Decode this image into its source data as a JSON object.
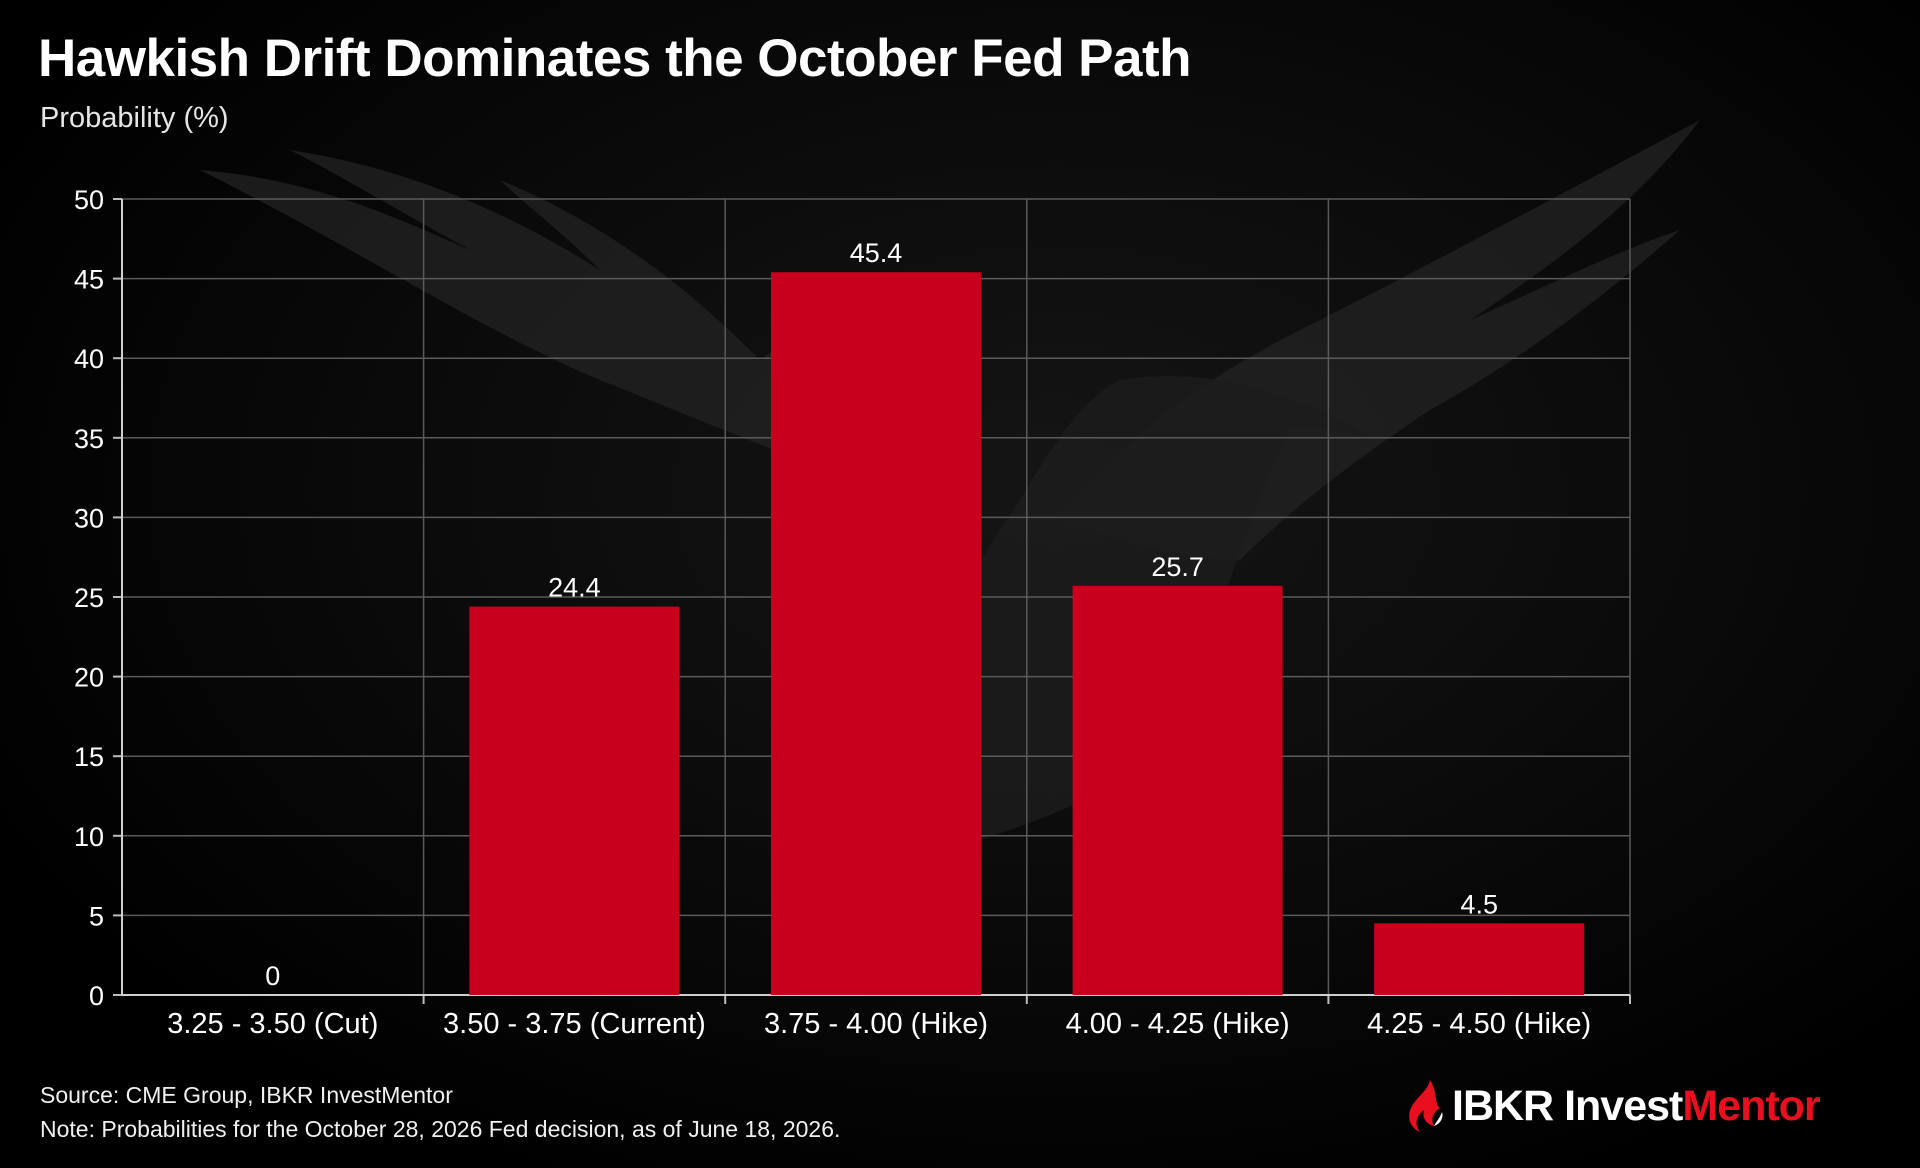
{
  "header": {
    "title": "Hawkish Drift Dominates the October Fed Path",
    "subtitle": "Probability (%)"
  },
  "chart_data": {
    "type": "bar",
    "categories": [
      "3.25 - 3.50 (Cut)",
      "3.50 - 3.75 (Current)",
      "3.75 - 4.00 (Hike)",
      "4.00 - 4.25 (Hike)",
      "4.25 - 4.50 (Hike)"
    ],
    "values": [
      0,
      24.4,
      45.4,
      25.7,
      4.5
    ],
    "value_labels": [
      "0",
      "24.4",
      "45.4",
      "25.7",
      "4.5"
    ],
    "title": "Hawkish Drift Dominates the October Fed Path",
    "ylabel": "Probability (%)",
    "xlabel": "",
    "ylim": [
      0,
      50
    ],
    "yticks": [
      0,
      5,
      10,
      15,
      20,
      25,
      30,
      35,
      40,
      45,
      50
    ],
    "grid": true,
    "bar_color": "#c8001e",
    "gridline_color": "#5a5a5a",
    "text_color": "#ffffff"
  },
  "footer": {
    "source": "Source: CME Group, IBKR InvestMentor",
    "note": "Note: Probabilities for the October 28, 2026 Fed decision, as of June 18, 2026."
  },
  "brand": {
    "icon": "ibkr-flame-icon",
    "part1": "IBKR ",
    "part2": "Invest",
    "part3": "Mentor",
    "accent_color": "#e8101e"
  }
}
